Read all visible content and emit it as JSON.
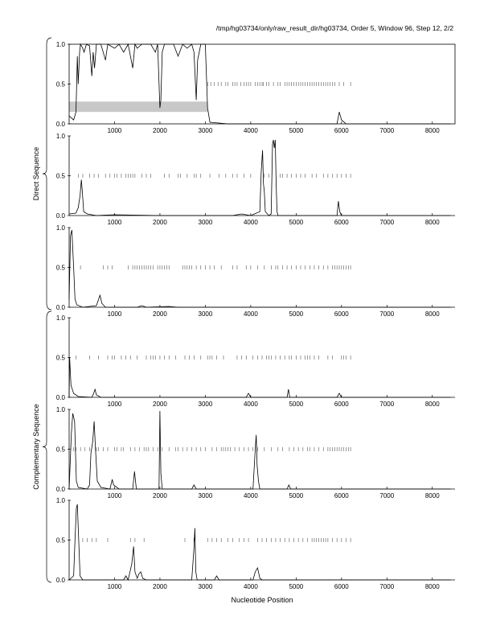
{
  "header": {
    "title": "/tmp/hg03734/only/raw_result_dir/hg03734, Order 5, Window 96, Step 12, 2/2"
  },
  "axes": {
    "xlabel": "Nucleotide Position",
    "group_labels": [
      "Direct Sequence",
      "Complementary Sequence"
    ]
  },
  "chart_data": {
    "type": "line",
    "title": "/tmp/hg03734/only/raw_result_dir/hg03734, Order 5, Window 96, Step 12, 2/2",
    "xlabel": "Nucleotide Position",
    "xlim": [
      0,
      8500
    ],
    "ylim": [
      0,
      1
    ],
    "x_ticks": [
      1000,
      2000,
      3000,
      4000,
      5000,
      6000,
      7000,
      8000
    ],
    "y_ticks": [
      "0.0",
      "0.5",
      "1.0"
    ],
    "groups": [
      {
        "label": "Direct Sequence",
        "panels": [
          0,
          1,
          2
        ]
      },
      {
        "label": "Complementary Sequence",
        "panels": [
          3,
          4,
          5
        ]
      }
    ],
    "shaded_region": {
      "panel": 0,
      "x": [
        0,
        3050
      ],
      "y": [
        0.15,
        0.28
      ]
    },
    "panels": [
      {
        "frame": 1,
        "series": [
          [
            0,
            0.1
          ],
          [
            100,
            0.05
          ],
          [
            150,
            0.15
          ],
          [
            180,
            0.85
          ],
          [
            200,
            0.5
          ],
          [
            230,
            0.9
          ],
          [
            250,
            1.0
          ],
          [
            300,
            0.95
          ],
          [
            330,
            0.9
          ],
          [
            380,
            1.0
          ],
          [
            450,
            0.98
          ],
          [
            500,
            0.6
          ],
          [
            530,
            0.9
          ],
          [
            560,
            0.7
          ],
          [
            600,
            1.0
          ],
          [
            700,
            1.0
          ],
          [
            800,
            0.8
          ],
          [
            850,
            1.0
          ],
          [
            1000,
            0.95
          ],
          [
            1100,
            1.0
          ],
          [
            1200,
            0.9
          ],
          [
            1300,
            1.0
          ],
          [
            1400,
            0.7
          ],
          [
            1450,
            1.0
          ],
          [
            1500,
            0.95
          ],
          [
            1600,
            1.0
          ],
          [
            1800,
            1.0
          ],
          [
            1900,
            0.9
          ],
          [
            1950,
            1.0
          ],
          [
            2000,
            0.2
          ],
          [
            2020,
            0.3
          ],
          [
            2050,
            0.9
          ],
          [
            2100,
            1.0
          ],
          [
            2300,
            1.0
          ],
          [
            2400,
            0.85
          ],
          [
            2500,
            1.0
          ],
          [
            2600,
            0.95
          ],
          [
            2700,
            1.0
          ],
          [
            2750,
            0.9
          ],
          [
            2800,
            0.3
          ],
          [
            2830,
            0.8
          ],
          [
            2900,
            1.0
          ],
          [
            3000,
            1.0
          ],
          [
            3050,
            0.2
          ],
          [
            3100,
            0.02
          ],
          [
            3500,
            0.0
          ],
          [
            5900,
            0.0
          ],
          [
            5950,
            0.15
          ],
          [
            6000,
            0.05
          ],
          [
            6100,
            0.0
          ],
          [
            8400,
            0.0
          ]
        ],
        "ticks": [
          3050,
          3120,
          3200,
          3280,
          3350,
          3450,
          3500,
          3600,
          3650,
          3700,
          3780,
          3850,
          3900,
          3950,
          4000,
          4100,
          4150,
          4200,
          4250,
          4280,
          4350,
          4400,
          4500,
          4600,
          4650,
          4750,
          4800,
          4850,
          4900,
          4950,
          5000,
          5050,
          5100,
          5150,
          5200,
          5250,
          5300,
          5350,
          5400,
          5450,
          5500,
          5550,
          5600,
          5650,
          5700,
          5750,
          5800,
          5850,
          5950,
          6050,
          6200
        ]
      },
      {
        "frame": 0,
        "series": [
          [
            0,
            0.02
          ],
          [
            150,
            0.03
          ],
          [
            200,
            0.1
          ],
          [
            240,
            0.25
          ],
          [
            270,
            0.45
          ],
          [
            290,
            0.3
          ],
          [
            320,
            0.05
          ],
          [
            400,
            0.02
          ],
          [
            600,
            0.0
          ],
          [
            1000,
            0.01
          ],
          [
            2000,
            0.0
          ],
          [
            3600,
            0.0
          ],
          [
            3800,
            0.02
          ],
          [
            4000,
            0.0
          ],
          [
            4200,
            0.05
          ],
          [
            4230,
            0.55
          ],
          [
            4260,
            0.82
          ],
          [
            4280,
            0.4
          ],
          [
            4300,
            0.3
          ],
          [
            4320,
            0.05
          ],
          [
            4400,
            0.0
          ],
          [
            4450,
            0.02
          ],
          [
            4480,
            0.9
          ],
          [
            4500,
            0.95
          ],
          [
            4520,
            0.85
          ],
          [
            4540,
            0.95
          ],
          [
            4560,
            0.4
          ],
          [
            4580,
            0.05
          ],
          [
            4600,
            0.0
          ],
          [
            5900,
            0.0
          ],
          [
            5930,
            0.18
          ],
          [
            5960,
            0.05
          ],
          [
            6000,
            0.0
          ],
          [
            8400,
            0.0
          ]
        ],
        "ticks": [
          200,
          300,
          450,
          550,
          650,
          800,
          900,
          1000,
          1050,
          1150,
          1250,
          1300,
          1350,
          1400,
          1450,
          1600,
          1700,
          1800,
          2100,
          2200,
          2400,
          2450,
          2600,
          2750,
          2800,
          2900,
          3100,
          3300,
          3450,
          3600,
          3700,
          3850,
          4000,
          4300,
          4400,
          4650,
          4700,
          4800,
          4900,
          5000,
          5100,
          5200,
          5350,
          5450,
          5600,
          5700,
          5800,
          5900,
          6000,
          6100,
          6200
        ]
      },
      {
        "frame": 0,
        "series": [
          [
            0,
            0.1
          ],
          [
            30,
            0.9
          ],
          [
            60,
            0.97
          ],
          [
            100,
            0.5
          ],
          [
            130,
            0.1
          ],
          [
            170,
            0.03
          ],
          [
            300,
            0.0
          ],
          [
            600,
            0.02
          ],
          [
            680,
            0.15
          ],
          [
            720,
            0.05
          ],
          [
            800,
            0.0
          ],
          [
            1500,
            0.0
          ],
          [
            1600,
            0.02
          ],
          [
            1700,
            0.0
          ],
          [
            2200,
            0.01
          ],
          [
            2400,
            0.0
          ],
          [
            8400,
            0.0
          ]
        ],
        "ticks": [
          250,
          750,
          850,
          950,
          1300,
          1400,
          1450,
          1500,
          1550,
          1600,
          1650,
          1700,
          1750,
          1800,
          1850,
          1950,
          2000,
          2050,
          2100,
          2150,
          2200,
          2500,
          2550,
          2600,
          2650,
          2700,
          2800,
          2900,
          3000,
          3100,
          3200,
          3350,
          3600,
          3700,
          3900,
          4000,
          4150,
          4300,
          4450,
          4550,
          4600,
          4700,
          4800,
          4900,
          5000,
          5100,
          5200,
          5300,
          5400,
          5500,
          5600,
          5700,
          5800,
          5850,
          5900,
          5950,
          6000,
          6050,
          6100,
          6150,
          6200
        ]
      },
      {
        "frame": 0,
        "series": [
          [
            0,
            0.0
          ],
          [
            10,
            0.5
          ],
          [
            40,
            0.15
          ],
          [
            100,
            0.05
          ],
          [
            200,
            0.01
          ],
          [
            500,
            0.0
          ],
          [
            540,
            0.05
          ],
          [
            570,
            0.1
          ],
          [
            600,
            0.03
          ],
          [
            700,
            0.0
          ],
          [
            3900,
            0.0
          ],
          [
            3950,
            0.05
          ],
          [
            4000,
            0.0
          ],
          [
            4800,
            0.0
          ],
          [
            4830,
            0.1
          ],
          [
            4860,
            0.0
          ],
          [
            5900,
            0.0
          ],
          [
            5950,
            0.05
          ],
          [
            6000,
            0.0
          ],
          [
            8400,
            0.0
          ]
        ],
        "ticks": [
          150,
          450,
          650,
          850,
          950,
          1000,
          1150,
          1250,
          1350,
          1500,
          1700,
          1800,
          1850,
          1900,
          2000,
          2100,
          2200,
          2350,
          2550,
          2650,
          2750,
          2900,
          3050,
          3100,
          3150,
          3250,
          3400,
          3700,
          3800,
          3900,
          4050,
          4150,
          4250,
          4350,
          4400,
          4450,
          4550,
          4650,
          4750,
          4850,
          4900,
          5000,
          5100,
          5200,
          5250,
          5300,
          5400,
          5500,
          5700,
          5800,
          6000,
          6050,
          6100,
          6200
        ]
      },
      {
        "frame": 0,
        "series": [
          [
            0,
            0.0
          ],
          [
            50,
            0.7
          ],
          [
            80,
            0.95
          ],
          [
            120,
            0.85
          ],
          [
            160,
            0.1
          ],
          [
            200,
            0.02
          ],
          [
            400,
            0.0
          ],
          [
            450,
            0.05
          ],
          [
            480,
            0.45
          ],
          [
            520,
            0.6
          ],
          [
            550,
            0.85
          ],
          [
            580,
            0.5
          ],
          [
            620,
            0.1
          ],
          [
            700,
            0.02
          ],
          [
            900,
            0.0
          ],
          [
            950,
            0.12
          ],
          [
            980,
            0.05
          ],
          [
            1100,
            0.0
          ],
          [
            1400,
            0.0
          ],
          [
            1440,
            0.22
          ],
          [
            1480,
            0.0
          ],
          [
            1980,
            0.0
          ],
          [
            2000,
            0.98
          ],
          [
            2020,
            0.2
          ],
          [
            2050,
            0.0
          ],
          [
            2700,
            0.0
          ],
          [
            2750,
            0.05
          ],
          [
            2800,
            0.0
          ],
          [
            4050,
            0.0
          ],
          [
            4100,
            0.5
          ],
          [
            4120,
            0.68
          ],
          [
            4140,
            0.3
          ],
          [
            4170,
            0.1
          ],
          [
            4200,
            0.0
          ],
          [
            4800,
            0.0
          ],
          [
            4840,
            0.05
          ],
          [
            4880,
            0.0
          ],
          [
            8400,
            0.0
          ]
        ],
        "ticks": [
          100,
          150,
          250,
          350,
          450,
          600,
          650,
          750,
          850,
          1000,
          1050,
          1150,
          1200,
          1350,
          1450,
          1550,
          1650,
          1700,
          1750,
          1850,
          1950,
          2050,
          2200,
          2350,
          2400,
          2500,
          2600,
          2700,
          2800,
          2900,
          3000,
          3150,
          3250,
          3350,
          3400,
          3450,
          3500,
          3550,
          3650,
          3750,
          3850,
          3950,
          4050,
          4150,
          4300,
          4450,
          4600,
          4700,
          4850,
          4950,
          5050,
          5150,
          5250,
          5300,
          5400,
          5500,
          5600,
          5700,
          5750,
          5800,
          5850,
          5900,
          5950,
          6000,
          6050,
          6100,
          6150,
          6200
        ]
      },
      {
        "frame": 0,
        "series": [
          [
            0,
            0.0
          ],
          [
            100,
            0.05
          ],
          [
            130,
            0.5
          ],
          [
            160,
            0.9
          ],
          [
            180,
            0.95
          ],
          [
            210,
            0.5
          ],
          [
            240,
            0.05
          ],
          [
            300,
            0.0
          ],
          [
            1200,
            0.0
          ],
          [
            1250,
            0.05
          ],
          [
            1300,
            0.0
          ],
          [
            1380,
            0.2
          ],
          [
            1420,
            0.42
          ],
          [
            1450,
            0.1
          ],
          [
            1500,
            0.02
          ],
          [
            1540,
            0.08
          ],
          [
            1580,
            0.1
          ],
          [
            1620,
            0.02
          ],
          [
            1700,
            0.0
          ],
          [
            2700,
            0.0
          ],
          [
            2750,
            0.4
          ],
          [
            2770,
            0.65
          ],
          [
            2790,
            0.1
          ],
          [
            2820,
            0.0
          ],
          [
            3200,
            0.0
          ],
          [
            3250,
            0.05
          ],
          [
            3300,
            0.0
          ],
          [
            4050,
            0.0
          ],
          [
            4100,
            0.1
          ],
          [
            4150,
            0.15
          ],
          [
            4200,
            0.02
          ],
          [
            4250,
            0.0
          ],
          [
            8400,
            0.0
          ]
        ],
        "ticks": [
          300,
          400,
          500,
          600,
          850,
          1350,
          1450,
          1650,
          2550,
          2750,
          3050,
          3150,
          3250,
          3350,
          3500,
          3600,
          3750,
          3850,
          3950,
          4150,
          4250,
          4350,
          4450,
          4550,
          4650,
          4750,
          4850,
          4950,
          5050,
          5150,
          5250,
          5350,
          5400,
          5450,
          5500,
          5550,
          5600,
          5650,
          5700,
          5800,
          5900,
          6000,
          6100,
          6200
        ]
      }
    ]
  }
}
